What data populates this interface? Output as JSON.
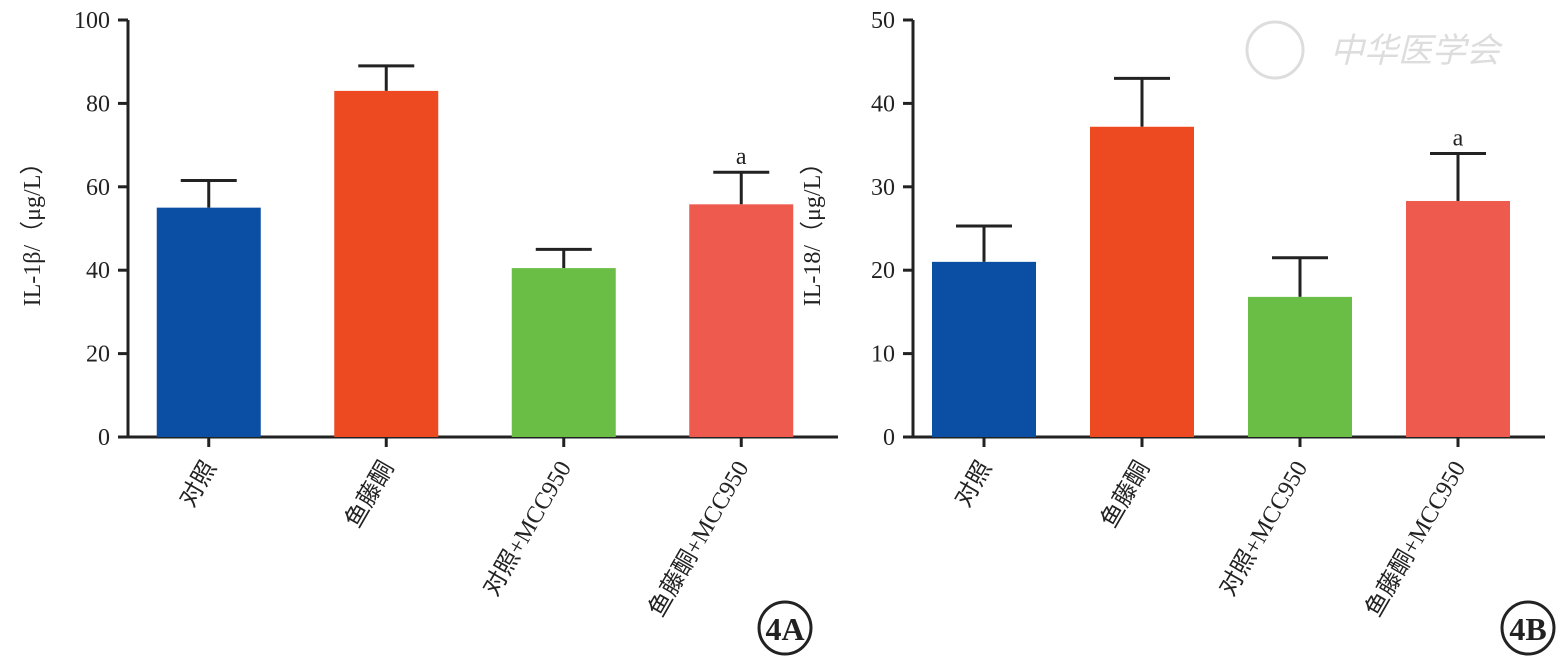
{
  "chart_data": [
    {
      "type": "bar",
      "panel_label": "4A",
      "y_label": "IL-1β/（μg/L）",
      "categories": [
        "对照",
        "鱼藤酮",
        "对照+MCC950",
        "鱼藤酮+MCC950"
      ],
      "values": [
        55,
        83,
        40.5,
        55.8
      ],
      "errors": [
        6.5,
        6,
        4.5,
        7.7
      ],
      "colors": [
        "#0a4fa4",
        "#ee4a22",
        "#6abd45",
        "#ef5a4f"
      ],
      "value_annotations": [
        null,
        null,
        null,
        "a"
      ],
      "ylim": [
        0,
        100
      ],
      "yticks": [
        0,
        20,
        40,
        60,
        80,
        100
      ]
    },
    {
      "type": "bar",
      "panel_label": "4B",
      "y_label": "IL-18/（μg/L）",
      "categories": [
        "对照",
        "鱼藤酮",
        "对照+MCC950",
        "鱼藤酮+MCC950"
      ],
      "values": [
        21,
        37.2,
        16.8,
        28.3
      ],
      "errors": [
        4.3,
        5.8,
        4.7,
        5.7
      ],
      "colors": [
        "#0a4fa4",
        "#ee4a22",
        "#6abd45",
        "#ef5a4f"
      ],
      "value_annotations": [
        null,
        null,
        null,
        "a"
      ],
      "ylim": [
        0,
        50
      ],
      "yticks": [
        0,
        10,
        20,
        30,
        40,
        50
      ],
      "watermark": "中华医学会"
    }
  ]
}
